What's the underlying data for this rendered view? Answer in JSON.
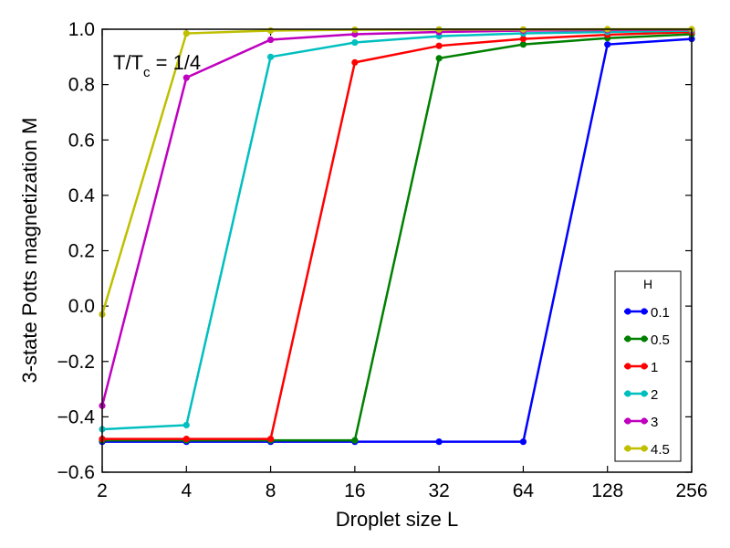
{
  "chart_data": {
    "type": "line",
    "xlabel": "Droplet size L",
    "ylabel": "3-state Potts magnetization M",
    "x_scale": "log2",
    "x": [
      2,
      4,
      8,
      16,
      32,
      64,
      128,
      256
    ],
    "x_tick_labels": [
      "2",
      "4",
      "8",
      "16",
      "32",
      "64",
      "128",
      "256"
    ],
    "xlim": [
      2,
      256
    ],
    "ylim": [
      -0.6,
      1.0
    ],
    "y_ticks": [
      -0.6,
      -0.4,
      -0.2,
      0.0,
      0.2,
      0.4,
      0.6,
      0.8,
      1.0
    ],
    "y_tick_labels": [
      "−0.6",
      "−0.4",
      "−0.2",
      "0.0",
      "0.2",
      "0.4",
      "0.6",
      "0.8",
      "1.0"
    ],
    "annotation": {
      "main": "T/T",
      "sub": "c",
      "tail": " = 1/4"
    },
    "legend": {
      "title": "H",
      "position": "lower-right"
    },
    "series": [
      {
        "name": "0.1",
        "color": "#0000ff",
        "values": [
          -0.49,
          -0.49,
          -0.49,
          -0.49,
          -0.49,
          -0.49,
          0.945,
          0.965
        ]
      },
      {
        "name": "0.5",
        "color": "#008000",
        "values": [
          -0.485,
          -0.485,
          -0.485,
          -0.485,
          0.895,
          0.945,
          0.968,
          0.982
        ]
      },
      {
        "name": "1",
        "color": "#ff0000",
        "values": [
          -0.48,
          -0.48,
          -0.48,
          0.88,
          0.94,
          0.965,
          0.98,
          0.99
        ]
      },
      {
        "name": "2",
        "color": "#00bfbf",
        "values": [
          -0.445,
          -0.43,
          0.9,
          0.952,
          0.975,
          0.985,
          0.99,
          0.995
        ]
      },
      {
        "name": "3",
        "color": "#bf00bf",
        "values": [
          -0.36,
          0.825,
          0.962,
          0.982,
          0.99,
          0.995,
          0.997,
          0.998
        ]
      },
      {
        "name": "4.5",
        "color": "#bfbf00",
        "values": [
          -0.03,
          0.985,
          0.995,
          0.998,
          0.999,
          0.999,
          1.0,
          1.0
        ]
      }
    ]
  }
}
